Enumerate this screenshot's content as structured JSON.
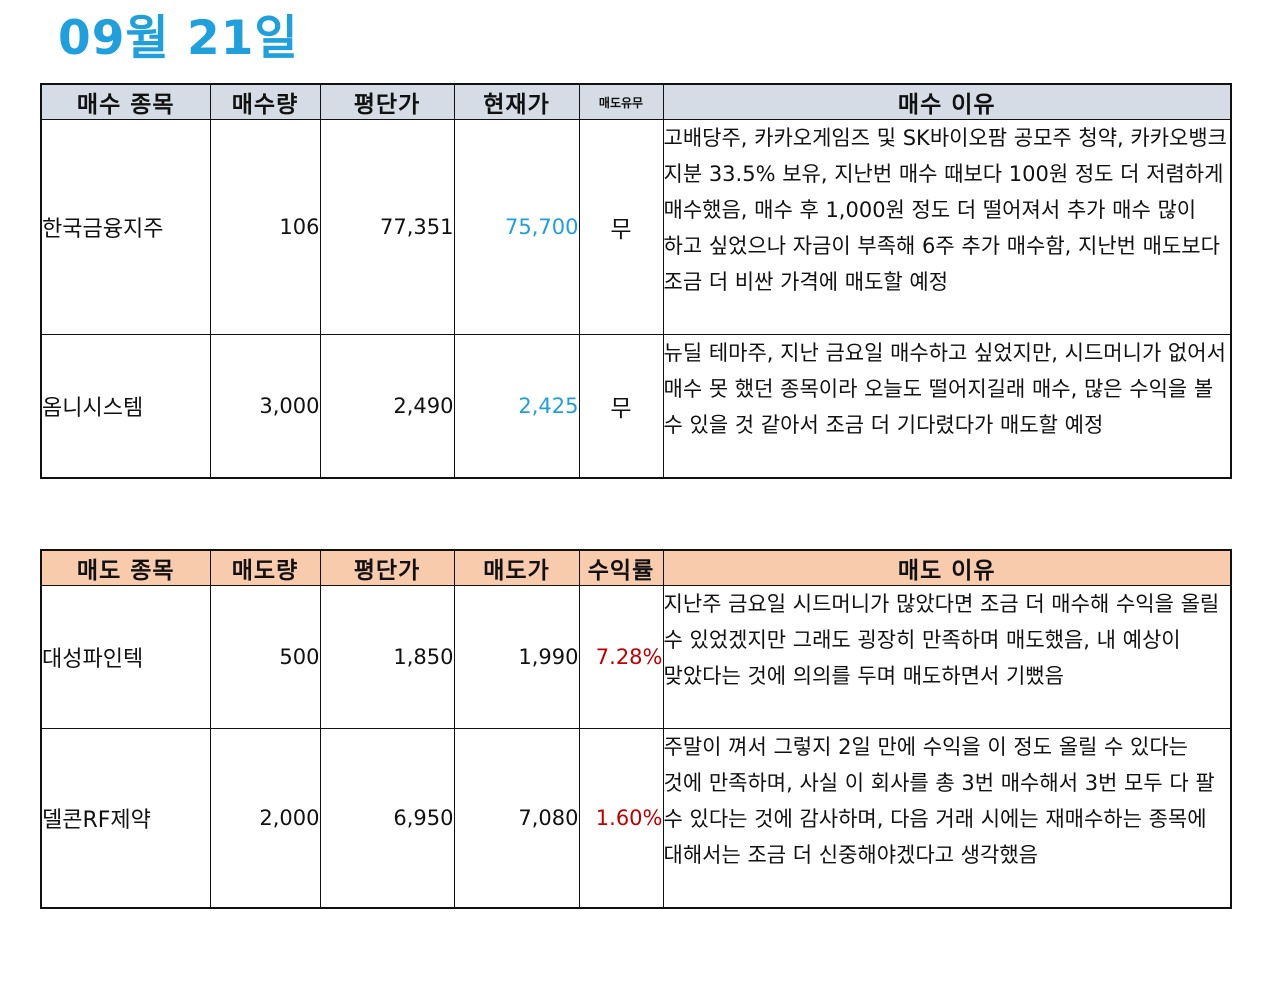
{
  "title": "09월 21일",
  "colors": {
    "title": "#1f9fdc",
    "buy_header_bg": "#d6dce5",
    "sell_header_bg": "#f8cbad",
    "current_price": "#1f9fdc",
    "return_rate": "#c00000"
  },
  "buy_table": {
    "headers": [
      "매수 종목",
      "매수량",
      "평단가",
      "현재가",
      "매도유무",
      "매수 이유"
    ],
    "rows": [
      {
        "stock": "한국금융지주",
        "quantity": "106",
        "avg_price": "77,351",
        "current_price": "75,700",
        "sold": "무",
        "reason": "고배당주, 카카오게임즈 및 SK바이오팜 공모주 청약, 카카오뱅크 지분 33.5% 보유, 지난번 매수 때보다 100원 정도 더 저렴하게 매수했음, 매수 후 1,000원 정도 더 떨어져서 추가 매수 많이 하고 싶었으나 자금이 부족해 6주 추가 매수함, 지난번 매도보다 조금 더 비싼 가격에 매도할 예정"
      },
      {
        "stock": "옴니시스템",
        "quantity": "3,000",
        "avg_price": "2,490",
        "current_price": "2,425",
        "sold": "무",
        "reason": "뉴딜 테마주, 지난 금요일 매수하고 싶었지만, 시드머니가 없어서 매수 못 했던 종목이라 오늘도 떨어지길래 매수, 많은 수익을 볼 수 있을 것 같아서 조금 더 기다렸다가 매도할 예정"
      }
    ]
  },
  "sell_table": {
    "headers": [
      "매도 종목",
      "매도량",
      "평단가",
      "매도가",
      "수익률",
      "매도 이유"
    ],
    "rows": [
      {
        "stock": "대성파인텍",
        "quantity": "500",
        "avg_price": "1,850",
        "sell_price": "1,990",
        "return_rate": "7.28%",
        "reason": "지난주 금요일 시드머니가 많았다면 조금 더 매수해 수익을 올릴 수 있었겠지만 그래도 굉장히 만족하며 매도했음, 내 예상이 맞았다는 것에 의의를 두며 매도하면서 기뻤음"
      },
      {
        "stock": "델콘RF제약",
        "quantity": "2,000",
        "avg_price": "6,950",
        "sell_price": "7,080",
        "return_rate": "1.60%",
        "reason": "주말이 껴서 그렇지 2일 만에 수익을 이 정도 올릴 수 있다는 것에 만족하며, 사실 이 회사를 총 3번 매수해서 3번 모두 다 팔 수 있다는 것에 감사하며, 다음 거래 시에는 재매수하는 종목에 대해서는 조금 더 신중해야겠다고 생각했음"
      }
    ]
  }
}
